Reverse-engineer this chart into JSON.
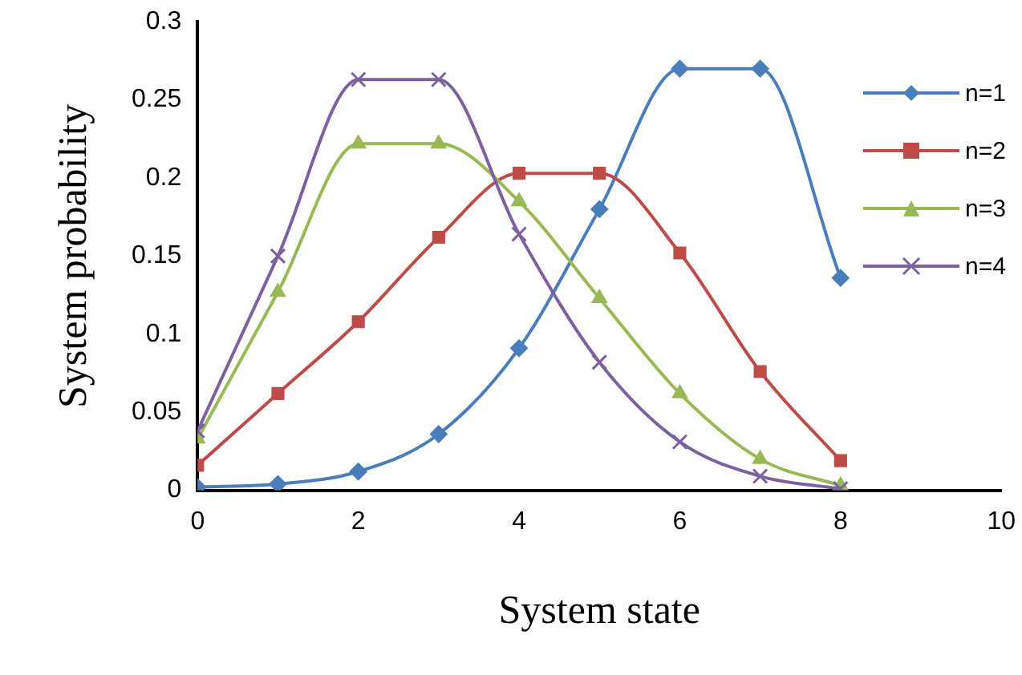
{
  "chart_data": {
    "type": "line",
    "xlabel": "System state",
    "ylabel": "System probability",
    "x": [
      0,
      1,
      2,
      3,
      4,
      5,
      6,
      7,
      8
    ],
    "xlim": [
      0,
      10
    ],
    "xticks": [
      0,
      2,
      4,
      6,
      8,
      10
    ],
    "ylim": [
      0,
      0.3
    ],
    "yticks": [
      0,
      0.05,
      0.1,
      0.15,
      0.2,
      0.25,
      0.3
    ],
    "grid": false,
    "legend": "top right",
    "series": [
      {
        "name": "n=1",
        "color": "#4a7ebb",
        "marker": "diamond",
        "values": [
          0.002,
          0.004,
          0.012,
          0.036,
          0.091,
          0.18,
          0.27,
          0.27,
          0.136
        ]
      },
      {
        "name": "n=2",
        "color": "#be4b48",
        "marker": "square",
        "values": [
          0.016,
          0.062,
          0.108,
          0.162,
          0.203,
          0.203,
          0.152,
          0.076,
          0.019
        ]
      },
      {
        "name": "n=3",
        "color": "#98b954",
        "marker": "triangle",
        "values": [
          0.033,
          0.127,
          0.222,
          0.222,
          0.185,
          0.123,
          0.062,
          0.02,
          0.003
        ]
      },
      {
        "name": "n=4",
        "color": "#7d60a0",
        "marker": "cross",
        "values": [
          0.038,
          0.15,
          0.263,
          0.263,
          0.164,
          0.082,
          0.031,
          0.009,
          0.001
        ]
      }
    ]
  }
}
